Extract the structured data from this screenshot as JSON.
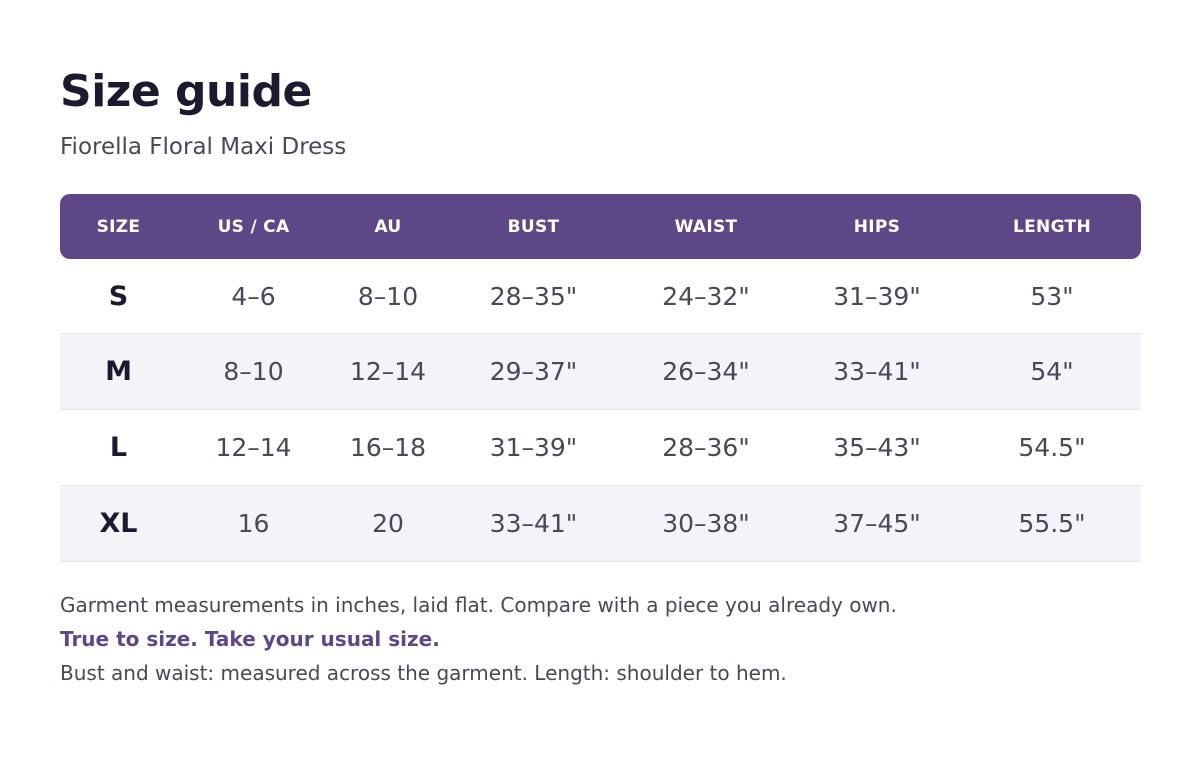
{
  "header": {
    "title": "Size guide",
    "product_name": "Fiorella Floral Maxi Dress"
  },
  "table": {
    "columns": [
      "SIZE",
      "US / CA",
      "AU",
      "BUST",
      "WAIST",
      "HIPS",
      "LENGTH"
    ],
    "rows": [
      [
        "S",
        "4–6",
        "8–10",
        "28–35\"",
        "24–32\"",
        "31–39\"",
        "53\""
      ],
      [
        "M",
        "8–10",
        "12–14",
        "29–37\"",
        "26–34\"",
        "33–41\"",
        "54\""
      ],
      [
        "L",
        "12–14",
        "16–18",
        "31–39\"",
        "28–36\"",
        "35–43\"",
        "54.5\""
      ],
      [
        "XL",
        "16",
        "20",
        "33–41\"",
        "30–38\"",
        "37–45\"",
        "55.5\""
      ]
    ]
  },
  "notes": {
    "measurement_note": "Garment measurements in inches, laid flat. Compare with a piece you already own.",
    "fit_note": "True to size. Take your usual size.",
    "method_note": "Bust and waist: measured across the garment.  Length: shoulder to hem."
  },
  "colors": {
    "accent": "#5e4787",
    "row_shade": "#f4f3f8",
    "title_text": "#1c1a2e",
    "body_text": "#4a475a"
  }
}
